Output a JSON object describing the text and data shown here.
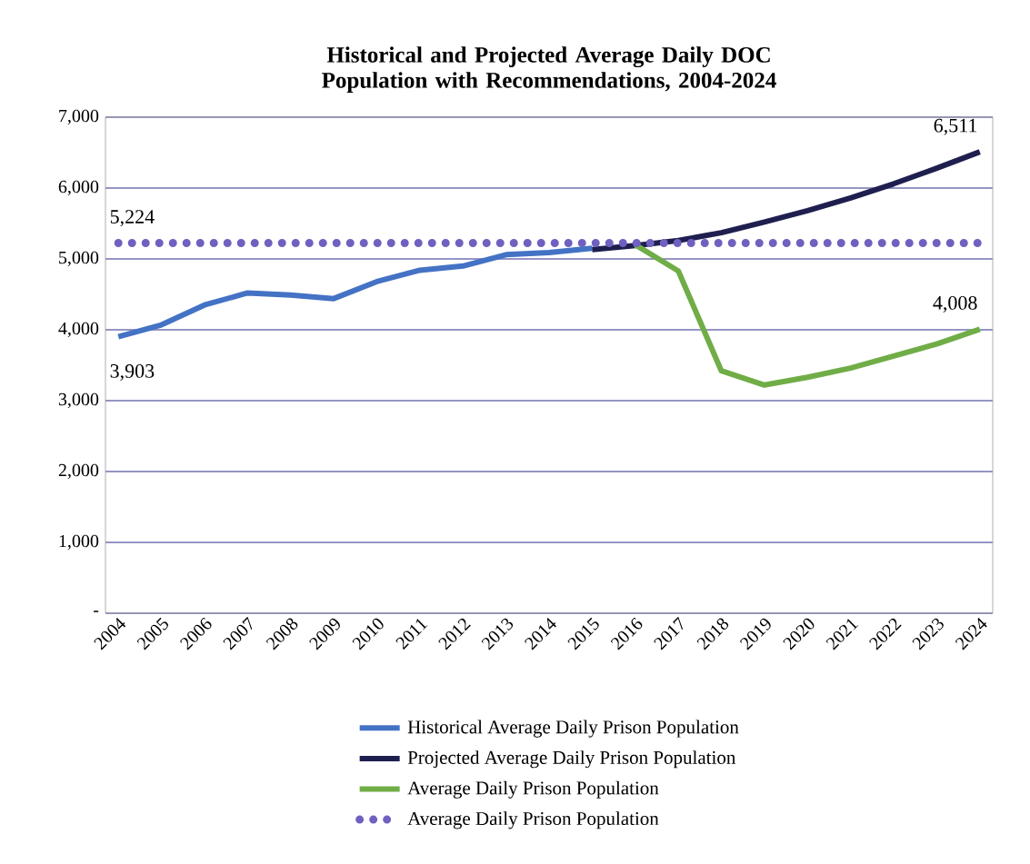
{
  "chart_data": {
    "type": "line",
    "title": "Historical and Projected Average Daily DOC Population with Recommendations, 2004-2024",
    "categories": [
      "2004",
      "2005",
      "2006",
      "2007",
      "2008",
      "2009",
      "2010",
      "2011",
      "2012",
      "2013",
      "2014",
      "2015",
      "2016",
      "2017",
      "2018",
      "2019",
      "2020",
      "2021",
      "2022",
      "2023",
      "2024"
    ],
    "series": [
      {
        "name": "Historical Average Daily Prison Population",
        "color": "#4472c4",
        "line_style": "solid",
        "values": [
          3903,
          4070,
          4350,
          4520,
          4490,
          4440,
          4680,
          4840,
          4900,
          5060,
          5090,
          5150,
          null,
          null,
          null,
          null,
          null,
          null,
          null,
          null,
          null
        ],
        "value_labels": [
          "3,903",
          null,
          null,
          null,
          null,
          null,
          null,
          null,
          null,
          null,
          null,
          null,
          null,
          null,
          null,
          null,
          null,
          null,
          null,
          null,
          null
        ]
      },
      {
        "name": "Projected Average Daily Prison Population",
        "color": "#1f1f4f",
        "line_style": "solid",
        "values": [
          null,
          null,
          null,
          null,
          null,
          null,
          null,
          null,
          null,
          null,
          null,
          5130,
          5190,
          5260,
          5370,
          5520,
          5680,
          5860,
          6060,
          6280,
          6511
        ],
        "value_labels": [
          null,
          null,
          null,
          null,
          null,
          null,
          null,
          null,
          null,
          null,
          null,
          null,
          null,
          null,
          null,
          null,
          null,
          null,
          null,
          null,
          "6,511"
        ]
      },
      {
        "name": "Average Daily Prison Population",
        "color": "#70ad47",
        "line_style": "solid",
        "values": [
          null,
          null,
          null,
          null,
          null,
          null,
          null,
          null,
          null,
          null,
          null,
          null,
          5200,
          4830,
          3420,
          3220,
          3330,
          3460,
          3630,
          3800,
          4008
        ],
        "value_labels": [
          null,
          null,
          null,
          null,
          null,
          null,
          null,
          null,
          null,
          null,
          null,
          null,
          null,
          null,
          null,
          null,
          null,
          null,
          null,
          null,
          "4,008"
        ]
      },
      {
        "name": "Average Daily Prison Population",
        "color": "#7060c0",
        "line_style": "dotted",
        "values": [
          5224,
          5224,
          5224,
          5224,
          5224,
          5224,
          5224,
          5224,
          5224,
          5224,
          5224,
          5224,
          5224,
          5224,
          5224,
          5224,
          5224,
          5224,
          5224,
          5224,
          5224
        ],
        "value_labels": [
          "5,224",
          null,
          null,
          null,
          null,
          null,
          null,
          null,
          null,
          null,
          null,
          null,
          null,
          null,
          null,
          null,
          null,
          null,
          null,
          null,
          null
        ]
      }
    ],
    "ylim": [
      0,
      7000
    ],
    "yticks": [
      {
        "value": 0,
        "label": "-"
      },
      {
        "value": 1000,
        "label": "1,000"
      },
      {
        "value": 2000,
        "label": "2,000"
      },
      {
        "value": 3000,
        "label": "3,000"
      },
      {
        "value": 4000,
        "label": "4,000"
      },
      {
        "value": 5000,
        "label": "5,000"
      },
      {
        "value": 6000,
        "label": "6,000"
      },
      {
        "value": 7000,
        "label": "7,000"
      }
    ],
    "grid": "y",
    "legend": "bottom",
    "marker": "none"
  }
}
